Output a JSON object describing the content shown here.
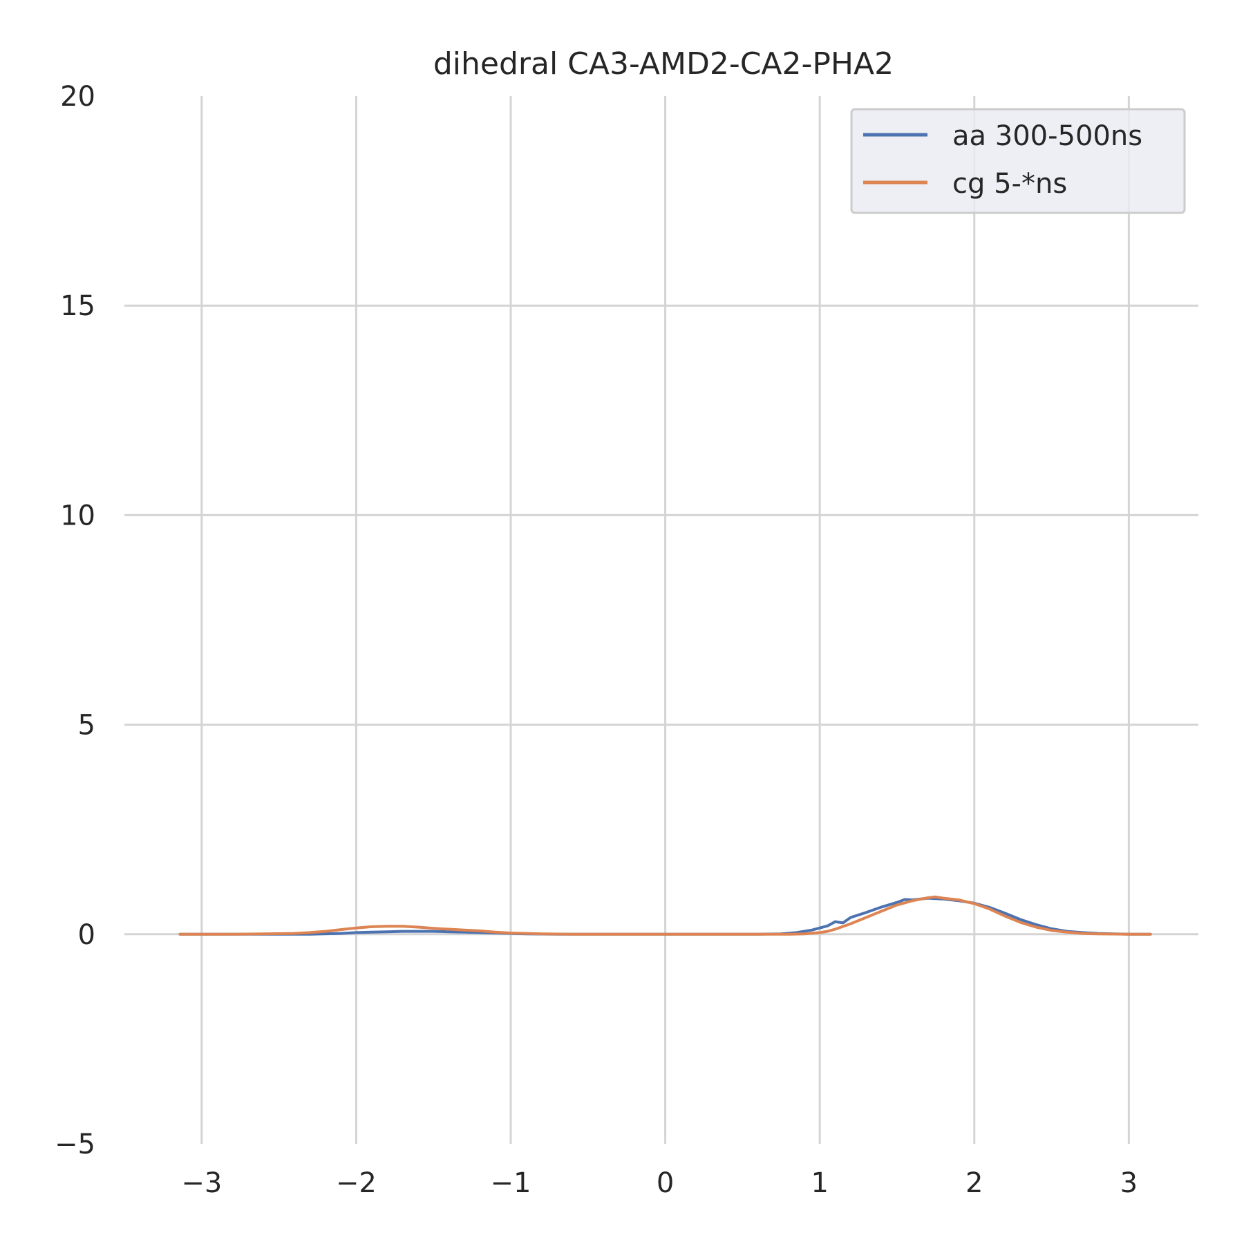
{
  "chart_data": {
    "type": "line",
    "title": "dihedral CA3-AMD2-CA2-PHA2",
    "xlabel": "",
    "ylabel": "",
    "xlim": [
      -3.5,
      3.45
    ],
    "ylim": [
      -5,
      20
    ],
    "x_ticks": [
      -3,
      -2,
      -1,
      0,
      1,
      2,
      3
    ],
    "x_tick_labels": [
      "−3",
      "−2",
      "−1",
      "0",
      "1",
      "2",
      "3"
    ],
    "y_ticks": [
      -5,
      0,
      5,
      10,
      15,
      20
    ],
    "y_tick_labels": [
      "−5",
      "0",
      "5",
      "10",
      "15",
      "20"
    ],
    "grid": true,
    "legend_position": "top-right",
    "series": [
      {
        "name": "aa 300-500ns",
        "color": "#4c72b0",
        "points": [
          [
            -3.14,
            0.0
          ],
          [
            -2.8,
            0.0
          ],
          [
            -2.5,
            0.0
          ],
          [
            -2.3,
            0.0
          ],
          [
            -2.1,
            0.02
          ],
          [
            -2.0,
            0.04
          ],
          [
            -1.9,
            0.05
          ],
          [
            -1.8,
            0.06
          ],
          [
            -1.7,
            0.07
          ],
          [
            -1.6,
            0.07
          ],
          [
            -1.5,
            0.07
          ],
          [
            -1.4,
            0.06
          ],
          [
            -1.3,
            0.05
          ],
          [
            -1.2,
            0.04
          ],
          [
            -1.1,
            0.03
          ],
          [
            -1.0,
            0.02
          ],
          [
            -0.9,
            0.01
          ],
          [
            -0.7,
            0.0
          ],
          [
            -0.4,
            0.0
          ],
          [
            0.0,
            0.0
          ],
          [
            0.3,
            0.0
          ],
          [
            0.6,
            0.0
          ],
          [
            0.75,
            0.01
          ],
          [
            0.85,
            0.04
          ],
          [
            0.95,
            0.1
          ],
          [
            1.0,
            0.15
          ],
          [
            1.05,
            0.2
          ],
          [
            1.1,
            0.3
          ],
          [
            1.15,
            0.27
          ],
          [
            1.2,
            0.4
          ],
          [
            1.3,
            0.52
          ],
          [
            1.4,
            0.65
          ],
          [
            1.5,
            0.76
          ],
          [
            1.55,
            0.83
          ],
          [
            1.6,
            0.82
          ],
          [
            1.7,
            0.86
          ],
          [
            1.8,
            0.84
          ],
          [
            1.9,
            0.8
          ],
          [
            2.0,
            0.74
          ],
          [
            2.1,
            0.64
          ],
          [
            2.2,
            0.5
          ],
          [
            2.3,
            0.35
          ],
          [
            2.4,
            0.23
          ],
          [
            2.5,
            0.13
          ],
          [
            2.6,
            0.07
          ],
          [
            2.7,
            0.04
          ],
          [
            2.8,
            0.02
          ],
          [
            2.9,
            0.01
          ],
          [
            3.0,
            0.0
          ],
          [
            3.14,
            0.0
          ]
        ]
      },
      {
        "name": "cg 5-*ns",
        "color": "#dd8452",
        "points": [
          [
            -3.14,
            0.0
          ],
          [
            -2.8,
            0.0
          ],
          [
            -2.6,
            0.01
          ],
          [
            -2.4,
            0.02
          ],
          [
            -2.3,
            0.04
          ],
          [
            -2.2,
            0.07
          ],
          [
            -2.1,
            0.11
          ],
          [
            -2.0,
            0.15
          ],
          [
            -1.9,
            0.18
          ],
          [
            -1.8,
            0.19
          ],
          [
            -1.7,
            0.19
          ],
          [
            -1.6,
            0.17
          ],
          [
            -1.5,
            0.14
          ],
          [
            -1.4,
            0.12
          ],
          [
            -1.3,
            0.1
          ],
          [
            -1.2,
            0.08
          ],
          [
            -1.1,
            0.05
          ],
          [
            -1.0,
            0.03
          ],
          [
            -0.9,
            0.02
          ],
          [
            -0.8,
            0.01
          ],
          [
            -0.6,
            0.0
          ],
          [
            -0.3,
            0.0
          ],
          [
            0.0,
            0.0
          ],
          [
            0.3,
            0.0
          ],
          [
            0.6,
            0.0
          ],
          [
            0.8,
            0.0
          ],
          [
            0.9,
            0.01
          ],
          [
            1.0,
            0.04
          ],
          [
            1.05,
            0.07
          ],
          [
            1.1,
            0.12
          ],
          [
            1.2,
            0.25
          ],
          [
            1.3,
            0.4
          ],
          [
            1.4,
            0.55
          ],
          [
            1.5,
            0.7
          ],
          [
            1.6,
            0.8
          ],
          [
            1.7,
            0.87
          ],
          [
            1.75,
            0.89
          ],
          [
            1.8,
            0.86
          ],
          [
            1.9,
            0.82
          ],
          [
            2.0,
            0.73
          ],
          [
            2.1,
            0.6
          ],
          [
            2.2,
            0.43
          ],
          [
            2.3,
            0.28
          ],
          [
            2.4,
            0.17
          ],
          [
            2.5,
            0.09
          ],
          [
            2.6,
            0.05
          ],
          [
            2.7,
            0.02
          ],
          [
            2.8,
            0.01
          ],
          [
            3.0,
            0.0
          ],
          [
            3.14,
            0.0
          ]
        ]
      }
    ]
  }
}
